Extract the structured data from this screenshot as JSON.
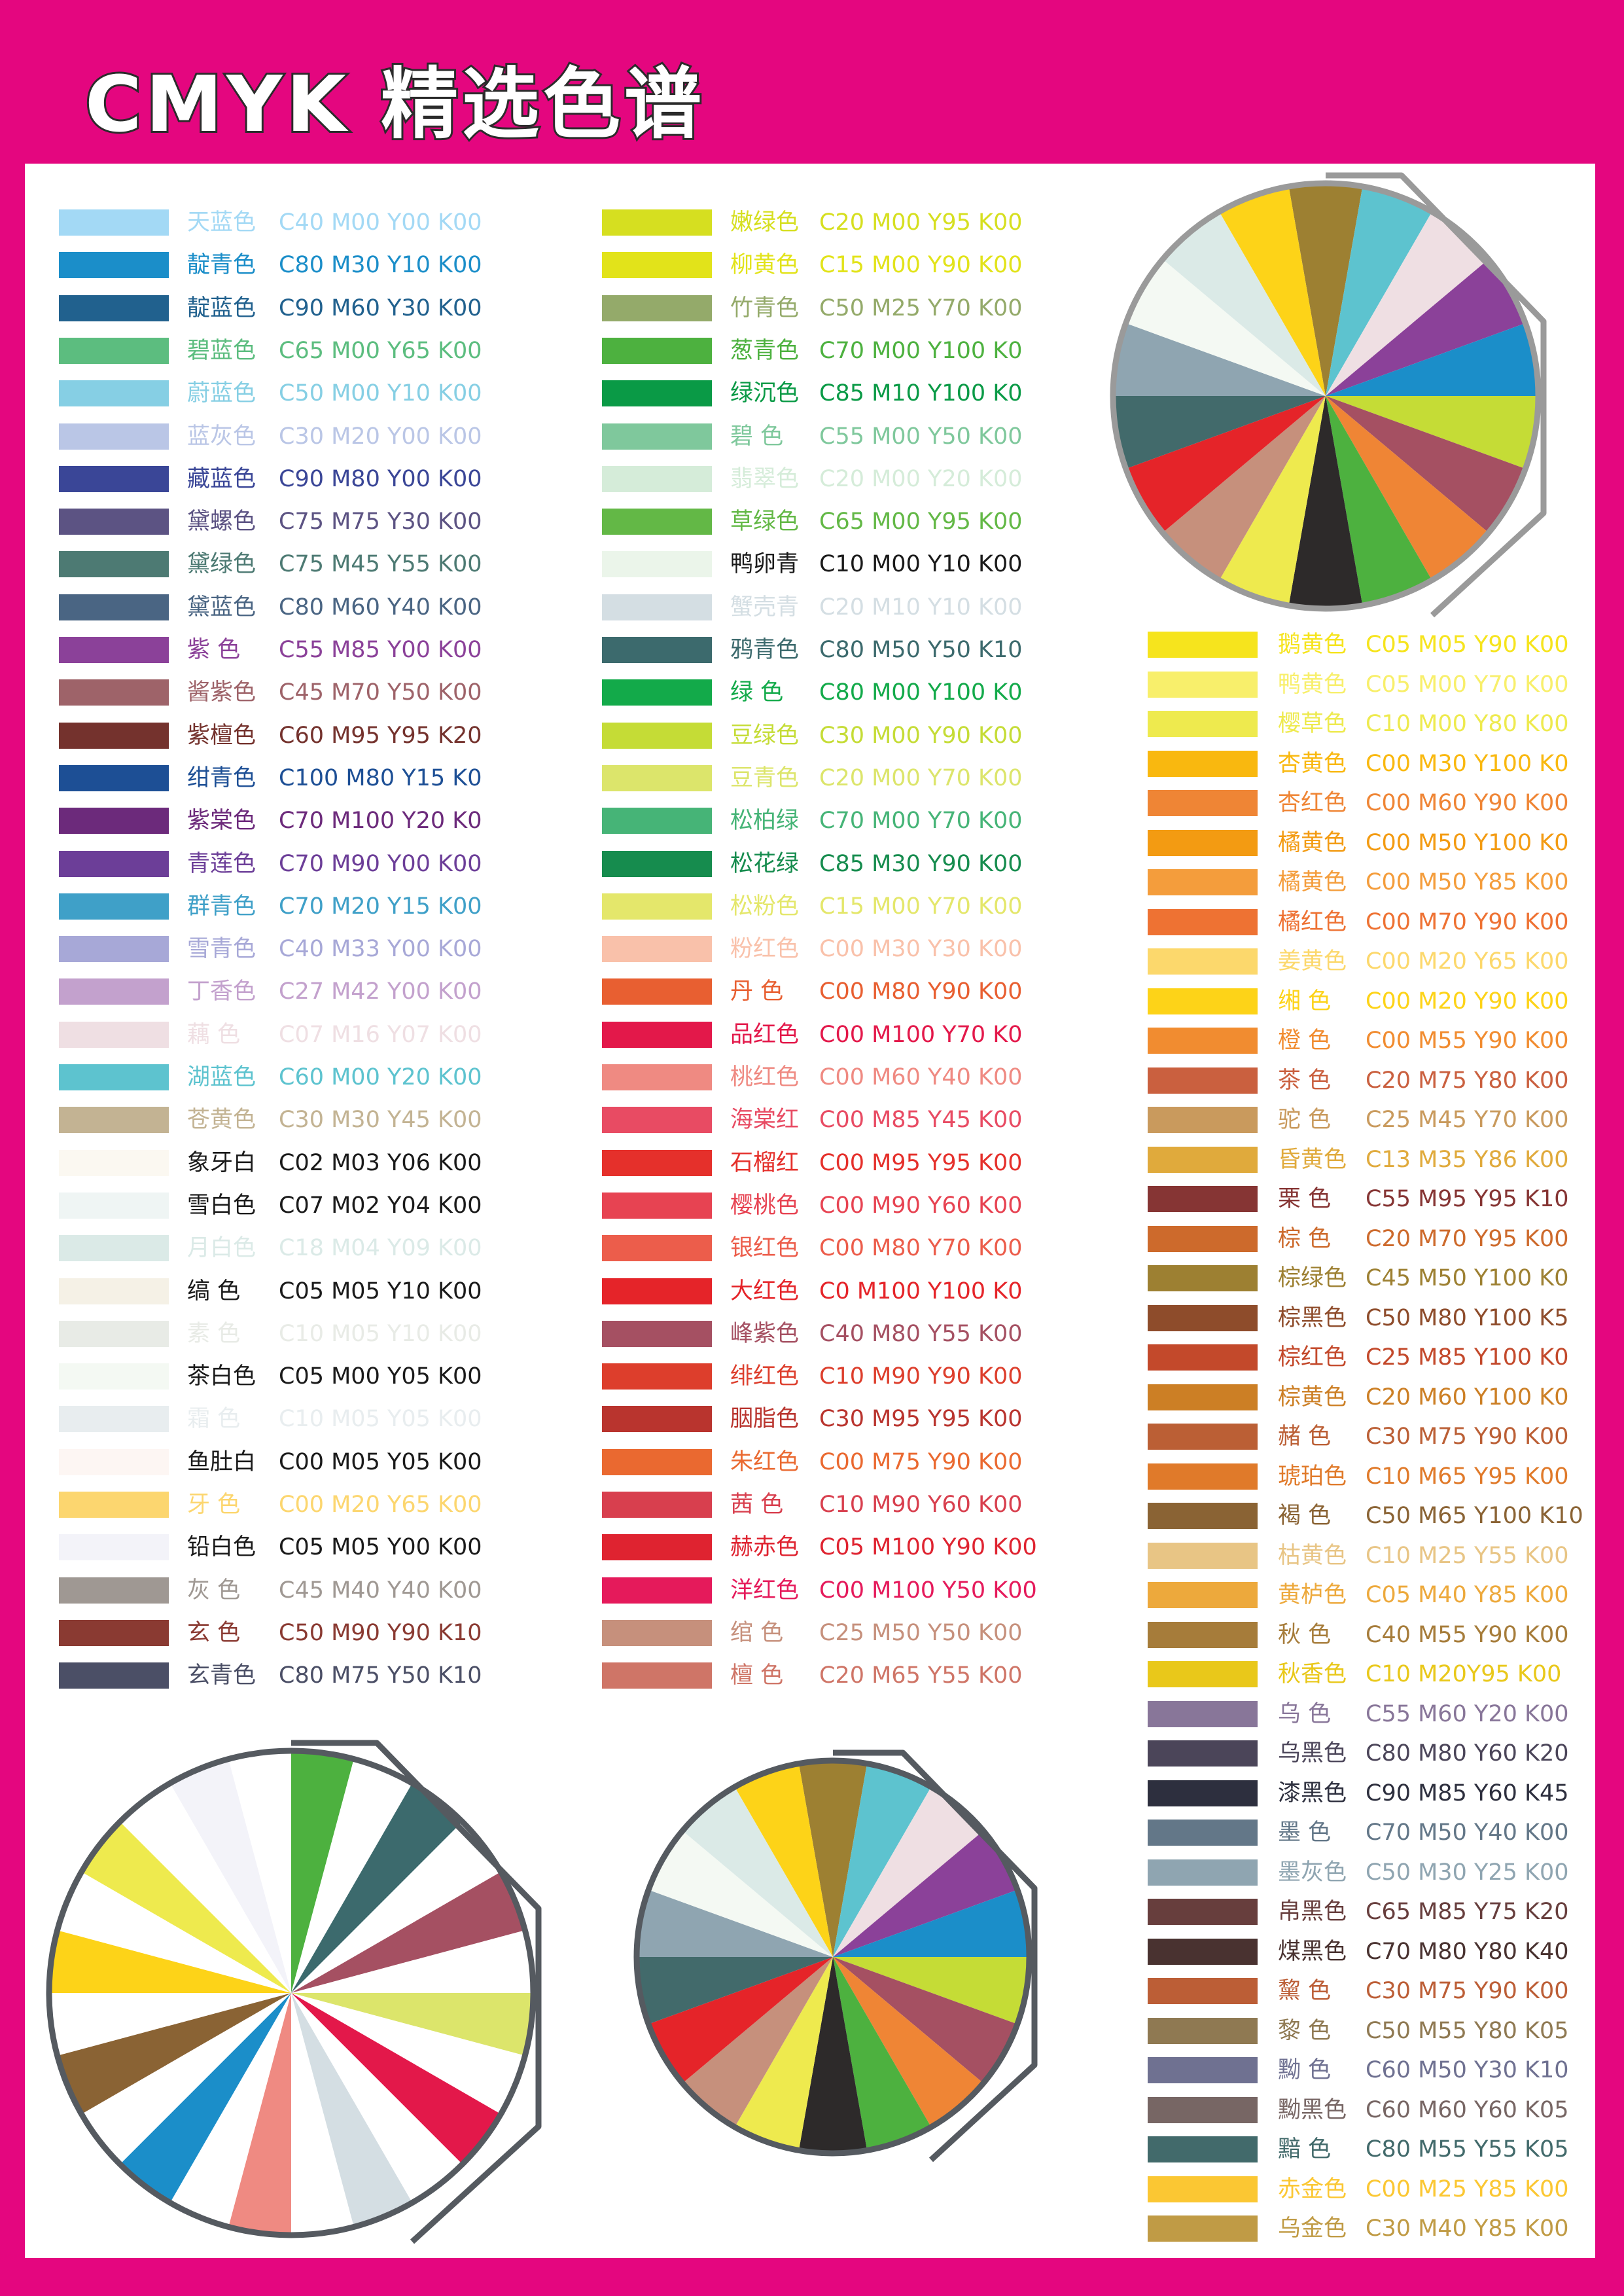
{
  "title": "CMYK 精选色谱",
  "columns": [
    [
      {
        "name": "天蓝色",
        "code": "C40 M00 Y00 K00",
        "color": "#a3d9f5"
      },
      {
        "name": "靛青色",
        "code": "C80 M30 Y10 K00",
        "color": "#1b8ec9"
      },
      {
        "name": "靛蓝色",
        "code": "C90 M60 Y30 K00",
        "color": "#21618e"
      },
      {
        "name": "碧蓝色",
        "code": "C65 M00 Y65 K00",
        "color": "#5cbd7f"
      },
      {
        "name": "蔚蓝色",
        "code": "C50 M00 Y10 K00",
        "color": "#86cfe4"
      },
      {
        "name": "蓝灰色",
        "code": "C30 M20 Y00 K00",
        "color": "#bac6e6"
      },
      {
        "name": "藏蓝色",
        "code": "C90 M80 Y00 K00",
        "color": "#3a4697"
      },
      {
        "name": "黛螺色",
        "code": "C75 M75 Y30 K00",
        "color": "#5c5383"
      },
      {
        "name": "黛绿色",
        "code": "C75 M45 Y55 K00",
        "color": "#4d7a73"
      },
      {
        "name": "黛蓝色",
        "code": "C80 M60 Y40 K00",
        "color": "#4a6583"
      },
      {
        "name": "紫 色",
        "code": "C55 M85 Y00 K00",
        "color": "#8b4199"
      },
      {
        "name": "酱紫色",
        "code": "C45 M70 Y50 K00",
        "color": "#9e6369"
      },
      {
        "name": "紫檀色",
        "code": "C60 M95 Y95 K20",
        "color": "#74322d"
      },
      {
        "name": "绀青色",
        "code": "C100 M80 Y15 K0",
        "color": "#1d4f95"
      },
      {
        "name": "紫棠色",
        "code": "C70 M100 Y20 K0",
        "color": "#6c2a7b"
      },
      {
        "name": "青莲色",
        "code": "C70 M90 Y00 K00",
        "color": "#6c3e98"
      },
      {
        "name": "群青色",
        "code": "C70 M20 Y15 K00",
        "color": "#3fa0c8"
      },
      {
        "name": "雪青色",
        "code": "C40 M33 Y00 K00",
        "color": "#a7a8d7"
      },
      {
        "name": "丁香色",
        "code": "C27 M42 Y00 K00",
        "color": "#c3a1cd"
      },
      {
        "name": "藕 色",
        "code": "C07 M16 Y07 K00",
        "color": "#efdfe3"
      },
      {
        "name": "湖蓝色",
        "code": "C60 M00 Y20 K00",
        "color": "#5dc3cf"
      },
      {
        "name": "苍黄色",
        "code": "C30 M30 Y45 K00",
        "color": "#c3b393"
      },
      {
        "name": "象牙白",
        "code": "C02 M03 Y06 K00",
        "color": "#fbf8f1"
      },
      {
        "name": "雪白色",
        "code": "C07 M02 Y04 K00",
        "color": "#eff5f4"
      },
      {
        "name": "月白色",
        "code": "C18 M04 Y09 K00",
        "color": "#dbeae7"
      },
      {
        "name": "缟 色",
        "code": "C05 M05 Y10 K00",
        "color": "#f5f1e6"
      },
      {
        "name": "素 色",
        "code": "C10 M05 Y10 K00",
        "color": "#e8ebe6"
      },
      {
        "name": "茶白色",
        "code": "C05 M00 Y05 K00",
        "color": "#f4f9f3"
      },
      {
        "name": "霜 色",
        "code": "C10 M05 Y05 K00",
        "color": "#e8edef"
      },
      {
        "name": "鱼肚白",
        "code": "C00 M05 Y05 K00",
        "color": "#fdf6f3"
      },
      {
        "name": "牙 色",
        "code": "C00 M20 Y65 K00",
        "color": "#fcd66f"
      },
      {
        "name": "铅白色",
        "code": "C05 M05 Y00 K00",
        "color": "#f3f3f9"
      },
      {
        "name": "灰 色",
        "code": "C45 M40 Y40 K00",
        "color": "#9f9893"
      },
      {
        "name": "玄 色",
        "code": "C50 M90 Y90 K10",
        "color": "#8a3a32"
      },
      {
        "name": "玄青色",
        "code": "C80 M75 Y50 K10",
        "color": "#4b4f66"
      }
    ],
    [
      {
        "name": "嫩绿色",
        "code": "C20 M00 Y95 K00",
        "color": "#d6df20"
      },
      {
        "name": "柳黄色",
        "code": "C15 M00 Y90 K00",
        "color": "#e2e31a"
      },
      {
        "name": "竹青色",
        "code": "C50 M25 Y70 K00",
        "color": "#94aa6a"
      },
      {
        "name": "葱青色",
        "code": "C70 M00 Y100 K0",
        "color": "#4db13f"
      },
      {
        "name": "绿沉色",
        "code": "C85 M10 Y100 K0",
        "color": "#0a9a46"
      },
      {
        "name": "碧 色",
        "code": "C55 M00 Y50 K00",
        "color": "#7fc89c"
      },
      {
        "name": "翡翠色",
        "code": "C20 M00 Y20 K00",
        "color": "#d5ecd9"
      },
      {
        "name": "草绿色",
        "code": "C65 M00 Y95 K00",
        "color": "#63b846"
      },
      {
        "name": "鸭卵青",
        "code": "C10 M00 Y10 K00",
        "color": "#ebf5ea"
      },
      {
        "name": "蟹壳青",
        "code": "C20 M10 Y10 K00",
        "color": "#d4dee3"
      },
      {
        "name": "鸦青色",
        "code": "C80 M50 Y50 K10",
        "color": "#3c6a6d"
      },
      {
        "name": "绿 色",
        "code": "C80 M00 Y100 K0",
        "color": "#13aa4a"
      },
      {
        "name": "豆绿色",
        "code": "C30 M00 Y90 K00",
        "color": "#c5dc36"
      },
      {
        "name": "豆青色",
        "code": "C20 M00 Y70 K00",
        "color": "#dce56b"
      },
      {
        "name": "松柏绿",
        "code": "C70 M00 Y70 K00",
        "color": "#46b477"
      },
      {
        "name": "松花绿",
        "code": "C85 M30 Y90 K00",
        "color": "#168c4e"
      },
      {
        "name": "松粉色",
        "code": "C15 M00 Y70 K00",
        "color": "#e4e76b"
      },
      {
        "name": "粉红色",
        "code": "C00 M30 Y30 K00",
        "color": "#f9c1aa"
      },
      {
        "name": "丹 色",
        "code": "C00 M80 Y90 K00",
        "color": "#e85f31"
      },
      {
        "name": "品红色",
        "code": "C00 M100 Y70 K0",
        "color": "#e3184a"
      },
      {
        "name": "桃红色",
        "code": "C00 M60 Y40 K00",
        "color": "#ef8a82"
      },
      {
        "name": "海棠红",
        "code": "C00 M85 Y45 K00",
        "color": "#e84b63"
      },
      {
        "name": "石榴红",
        "code": "C00 M95 Y95 K00",
        "color": "#e5302b"
      },
      {
        "name": "樱桃色",
        "code": "C00 M90 Y60 K00",
        "color": "#e74352"
      },
      {
        "name": "银红色",
        "code": "C00 M80 Y70 K00",
        "color": "#ec5d4b"
      },
      {
        "name": "大红色",
        "code": "C0 M100 Y100 K0",
        "color": "#e52429"
      },
      {
        "name": "峰紫色",
        "code": "C40 M80 Y55 K00",
        "color": "#a55062"
      },
      {
        "name": "绯红色",
        "code": "C10 M90 Y90 K00",
        "color": "#dd3e2c"
      },
      {
        "name": "胭脂色",
        "code": "C30 M95 Y95 K00",
        "color": "#b9342e"
      },
      {
        "name": "朱红色",
        "code": "C00 M75 Y90 K00",
        "color": "#ea6930"
      },
      {
        "name": "茜 色",
        "code": "C10 M90 Y60 K00",
        "color": "#d83f4e"
      },
      {
        "name": "赫赤色",
        "code": "C05 M100 Y90 K00",
        "color": "#df2330"
      },
      {
        "name": "洋红色",
        "code": "C00 M100 Y50 K00",
        "color": "#e51a5b"
      },
      {
        "name": "绾 色",
        "code": "C25 M50 Y50 K00",
        "color": "#c6907c"
      },
      {
        "name": "檀 色",
        "code": "C20 M65 Y55 K00",
        "color": "#cf7567"
      }
    ],
    [
      {
        "name": "鹅黄色",
        "code": "C05 M05 Y90 K00",
        "color": "#f6e41d"
      },
      {
        "name": "鸭黄色",
        "code": "C05 M00 Y70 K00",
        "color": "#f8ef6b"
      },
      {
        "name": "樱草色",
        "code": "C10 M00 Y80 K00",
        "color": "#eeea4e"
      },
      {
        "name": "杏黄色",
        "code": "C00 M30 Y100 K0",
        "color": "#f9b80f"
      },
      {
        "name": "杏红色",
        "code": "C00 M60 Y90 K00",
        "color": "#ef8535"
      },
      {
        "name": "橘黄色",
        "code": "C00 M50 Y100 K0",
        "color": "#f39b12"
      },
      {
        "name": "橘黄色",
        "code": "C00 M50 Y85 K00",
        "color": "#f49d3c"
      },
      {
        "name": "橘红色",
        "code": "C00 M70 Y90 K00",
        "color": "#ee7233"
      },
      {
        "name": "姜黄色",
        "code": "C00 M20 Y65 K00",
        "color": "#fcd86c"
      },
      {
        "name": "缃 色",
        "code": "C00 M20 Y90 K00",
        "color": "#fdd318"
      },
      {
        "name": "橙 色",
        "code": "C00 M55 Y90 K00",
        "color": "#f18c30"
      },
      {
        "name": "茶 色",
        "code": "C20 M75 Y80 K00",
        "color": "#ca603f"
      },
      {
        "name": "驼 色",
        "code": "C25 M45 Y70 K00",
        "color": "#c99a5d"
      },
      {
        "name": "昏黄色",
        "code": "C13 M35 Y86 K00",
        "color": "#e0aa3c"
      },
      {
        "name": "栗 色",
        "code": "C55 M95 Y95 K10",
        "color": "#863534"
      },
      {
        "name": "棕 色",
        "code": "C20 M70 Y95 K00",
        "color": "#cd6a2c"
      },
      {
        "name": "棕绿色",
        "code": "C45 M50 Y100 K0",
        "color": "#9d8032"
      },
      {
        "name": "棕黑色",
        "code": "C50 M80 Y100 K5",
        "color": "#8e4c2b"
      },
      {
        "name": "棕红色",
        "code": "C25 M85 Y100 K0",
        "color": "#c3492b"
      },
      {
        "name": "棕黄色",
        "code": "C20 M60 Y100 K0",
        "color": "#cc7f25"
      },
      {
        "name": "赭 色",
        "code": "C30 M75 Y90 K00",
        "color": "#bb5f35"
      },
      {
        "name": "琥珀色",
        "code": "C10 M65 Y95 K00",
        "color": "#e07a2a"
      },
      {
        "name": "褐 色",
        "code": "C50 M65 Y100 K10",
        "color": "#8a6334"
      },
      {
        "name": "枯黄色",
        "code": "C10 M25 Y55 K00",
        "color": "#e8c585"
      },
      {
        "name": "黄栌色",
        "code": "C05 M40 Y85 K00",
        "color": "#eda93c"
      },
      {
        "name": "秋 色",
        "code": "C40 M55 Y90 K00",
        "color": "#a67c3a"
      },
      {
        "name": "秋香色",
        "code": "C10 M20Y95 K00",
        "color": "#e9c81a"
      },
      {
        "name": "乌 色",
        "code": "C55 M60 Y20 K00",
        "color": "#887699"
      },
      {
        "name": "乌黑色",
        "code": "C80 M80 Y60 K20",
        "color": "#4b4559"
      },
      {
        "name": "漆黑色",
        "code": "C90 M85 Y60 K45",
        "color": "#2d2f3e"
      },
      {
        "name": "墨 色",
        "code": "C70 M50 Y40 K00",
        "color": "#637788"
      },
      {
        "name": "墨灰色",
        "code": "C50 M30 Y25 K00",
        "color": "#8fa5b1"
      },
      {
        "name": "帛黑色",
        "code": "C65 M85 Y75 K20",
        "color": "#673e3d"
      },
      {
        "name": "煤黑色",
        "code": "C70 M80 Y80 K40",
        "color": "#493230"
      },
      {
        "name": "黧 色",
        "code": "C30 M75 Y90 K00",
        "color": "#bc5e36"
      },
      {
        "name": "黎 色",
        "code": "C50 M55 Y80 K05",
        "color": "#8f7952"
      },
      {
        "name": "黝 色",
        "code": "C60 M50 Y30 K10",
        "color": "#6f7191"
      },
      {
        "name": "黝黑色",
        "code": "C60 M60 Y60 K05",
        "color": "#776664"
      },
      {
        "name": "黯 色",
        "code": "C80 M55 Y55 K05",
        "color": "#426a6b"
      },
      {
        "name": "赤金色",
        "code": "C00 M25 Y85 K00",
        "color": "#fbc733"
      },
      {
        "name": "乌金色",
        "code": "C30 M40 Y85 K00",
        "color": "#c09b45"
      }
    ]
  ],
  "wheels": [
    {
      "colors": [
        "#9d8032",
        "#5dc3cf",
        "#efdfe3",
        "#8b4199",
        "#1b8ec9",
        "#c5dc36",
        "#a55062",
        "#ef8535",
        "#4db13f",
        "#2d2a2a",
        "#eeea4e",
        "#c6907c",
        "#e52429",
        "#426a6b",
        "#8fa5b1",
        "#f4f9f3",
        "#dbeae7",
        "#fdd318"
      ]
    },
    {
      "colors": [
        "#4db13f",
        "#ffffff",
        "#3c6a6d",
        "#ffffff",
        "#a55062",
        "#ffffff",
        "#dce56b",
        "#ffffff",
        "#e3184a",
        "#ffffff",
        "#d4dee3",
        "#ffffff",
        "#ef8a82",
        "#ffffff",
        "#1b8ec9",
        "#ffffff",
        "#8a6334",
        "#ffffff",
        "#fdd318",
        "#ffffff",
        "#eeea4e",
        "#ffffff",
        "#f3f3f9",
        "#ffffff"
      ]
    },
    {
      "colors": [
        "#9d8032",
        "#5dc3cf",
        "#efdfe3",
        "#8b4199",
        "#1b8ec9",
        "#c5dc36",
        "#a55062",
        "#ef8535",
        "#4db13f",
        "#2d2a2a",
        "#eeea4e",
        "#c6907c",
        "#e52429",
        "#426a6b",
        "#8fa5b1",
        "#f4f9f3",
        "#dbeae7",
        "#fdd318"
      ]
    }
  ]
}
